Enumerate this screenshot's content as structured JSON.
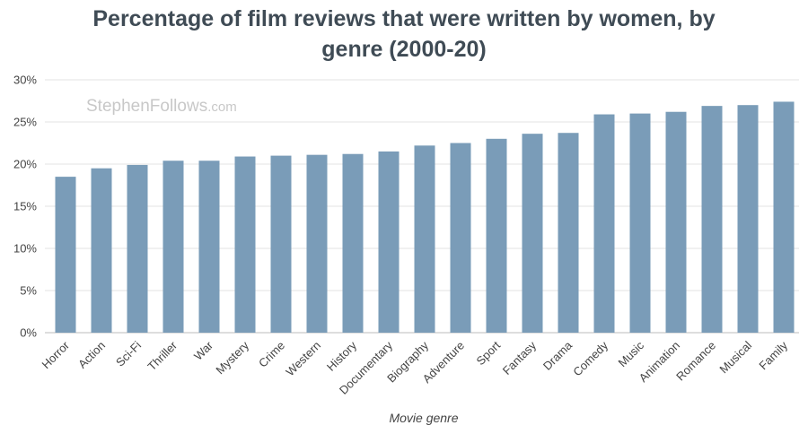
{
  "chart_data": {
    "type": "bar",
    "title_line1": "Percentage of film reviews that were written by women, by",
    "title_line2": "genre (2000-20)",
    "xlabel": "Movie genre",
    "ylabel": "",
    "ylim": [
      0,
      30
    ],
    "yticks": [
      "0%",
      "5%",
      "10%",
      "15%",
      "20%",
      "25%",
      "30%"
    ],
    "grid": true,
    "bar_color": "#7a9cb8",
    "categories": [
      "Horror",
      "Action",
      "Sci-Fi",
      "Thriller",
      "War",
      "Mystery",
      "Crime",
      "Western",
      "History",
      "Documentary",
      "Biography",
      "Adventure",
      "Sport",
      "Fantasy",
      "Drama",
      "Comedy",
      "Music",
      "Animation",
      "Romance",
      "Musical",
      "Family"
    ],
    "values": [
      18.5,
      19.5,
      19.9,
      20.4,
      20.4,
      20.9,
      21.0,
      21.1,
      21.2,
      21.5,
      22.2,
      22.5,
      23.0,
      23.6,
      23.7,
      25.9,
      26.0,
      26.2,
      26.9,
      27.0,
      27.4
    ]
  },
  "watermark": {
    "main": "StephenFollows",
    "suffix": ".com"
  }
}
